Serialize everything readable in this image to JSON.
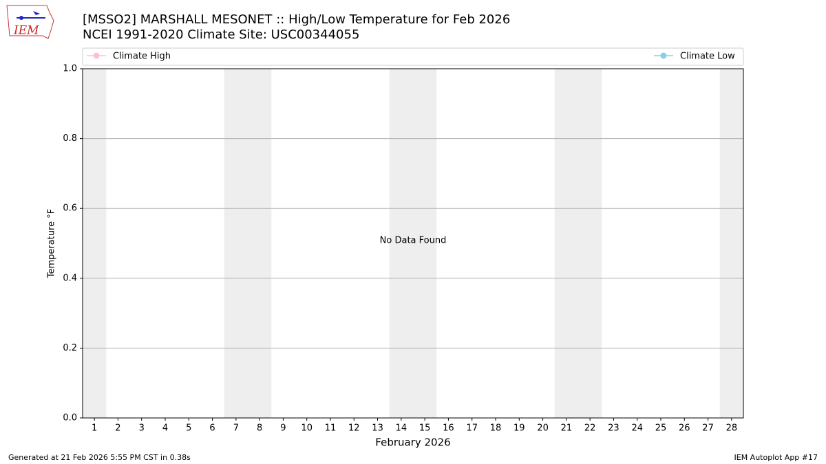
{
  "logo_text": "IEM",
  "chart_data": {
    "type": "line",
    "title": "[MSSO2] MARSHALL MESONET :: High/Low Temperature for Feb 2026",
    "subtitle": "NCEI 1991-2020 Climate Site: USC00344055",
    "x_label": "February 2026",
    "y_label": "Temperature °F",
    "annotation": "No Data Found",
    "x": [
      1,
      2,
      3,
      4,
      5,
      6,
      7,
      8,
      9,
      10,
      11,
      12,
      13,
      14,
      15,
      16,
      17,
      18,
      19,
      20,
      21,
      22,
      23,
      24,
      25,
      26,
      27,
      28
    ],
    "xlim": [
      0.5,
      28.5
    ],
    "xticks": [
      1,
      2,
      3,
      4,
      5,
      6,
      7,
      8,
      9,
      10,
      11,
      12,
      13,
      14,
      15,
      16,
      17,
      18,
      19,
      20,
      21,
      22,
      23,
      24,
      25,
      26,
      27,
      28
    ],
    "ylim": [
      0,
      1
    ],
    "yticks": [
      {
        "value": 0,
        "label": "0.0"
      },
      0.2,
      0.4,
      0.6,
      0.8,
      {
        "value": 1,
        "label": "1.0"
      }
    ],
    "grid": true,
    "series": [
      {
        "name": "Climate High",
        "color": "#ffc0cb",
        "values": [
          null,
          null,
          null,
          null,
          null,
          null,
          null,
          null,
          null,
          null,
          null,
          null,
          null,
          null,
          null,
          null,
          null,
          null,
          null,
          null,
          null,
          null,
          null,
          null,
          null,
          null,
          null,
          null
        ]
      },
      {
        "name": "Climate Low",
        "color": "#87ceeb",
        "values": [
          null,
          null,
          null,
          null,
          null,
          null,
          null,
          null,
          null,
          null,
          null,
          null,
          null,
          null,
          null,
          null,
          null,
          null,
          null,
          null,
          null,
          null,
          null,
          null,
          null,
          null,
          null,
          null
        ]
      }
    ],
    "footer_left": "Generated at 21 Feb 2026 5:55 PM CST in 0.38s",
    "footer_right": "IEM Autoplot App #17"
  }
}
